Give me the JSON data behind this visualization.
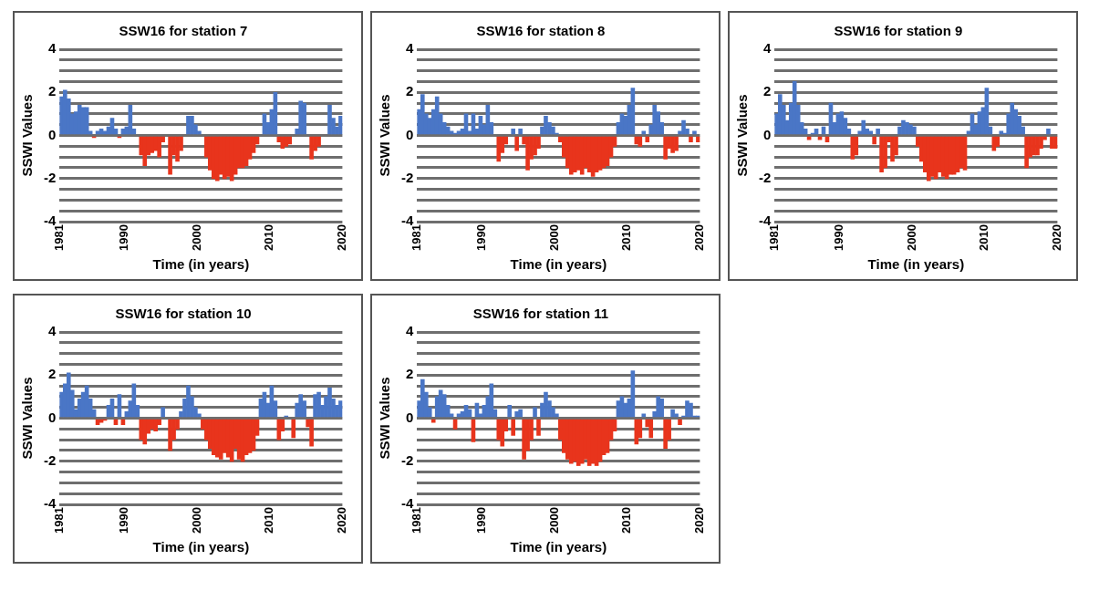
{
  "chart_data": [
    {
      "type": "bar",
      "title": "SSW16 for station 7",
      "xlabel": "Time (in years)",
      "ylabel": "SSWI Values",
      "grid": "y",
      "xlim": [
        1981,
        2020
      ],
      "xticks": [
        1981,
        1990,
        2000,
        2010,
        2020
      ],
      "ylim": [
        -4,
        4
      ],
      "yticks": [
        -4,
        {
          "value": -3.5,
          "label": null
        },
        {
          "value": -3,
          "label": null
        },
        {
          "value": -2.5,
          "label": null
        },
        -2,
        {
          "value": -1.5,
          "label": null
        },
        {
          "value": -1,
          "label": null
        },
        {
          "value": -0.5,
          "label": null
        },
        0,
        {
          "value": 0.5,
          "label": null
        },
        {
          "value": 1,
          "label": null
        },
        {
          "value": 1.5,
          "label": null
        },
        2,
        {
          "value": 2.5,
          "label": null
        },
        {
          "value": 3,
          "label": null
        },
        {
          "value": 3.5,
          "label": null
        },
        4
      ],
      "x": [
        1981.25,
        1981.75,
        1982.25,
        1982.75,
        1983.25,
        1983.75,
        1984.25,
        1984.75,
        1985.25,
        1985.75,
        1986.25,
        1986.75,
        1987.25,
        1987.75,
        1988.25,
        1988.75,
        1989.25,
        1989.75,
        1990.25,
        1990.75,
        1991.25,
        1991.75,
        1992.25,
        1992.75,
        1993.25,
        1993.75,
        1994.25,
        1994.75,
        1995.25,
        1995.75,
        1996.25,
        1996.75,
        1997.25,
        1997.75,
        1998.25,
        1998.75,
        1999.25,
        1999.75,
        2000.25,
        2000.75,
        2001.25,
        2001.75,
        2002.25,
        2002.75,
        2003.25,
        2003.75,
        2004.25,
        2004.75,
        2005.25,
        2005.75,
        2006.25,
        2006.75,
        2007.25,
        2007.75,
        2008.25,
        2008.75,
        2009.25,
        2009.75,
        2010.25,
        2010.75,
        2011.25,
        2011.75,
        2012.25,
        2012.75,
        2013.25,
        2013.75,
        2014.25,
        2014.75,
        2015.25,
        2015.75,
        2016.25,
        2016.75,
        2017.25,
        2017.75,
        2018.25,
        2018.75,
        2019.25,
        2019.75
      ],
      "series": [
        {
          "color": "#4a76c6",
          "values": [
            1.8,
            2.1,
            1.7,
            1.0,
            1.1,
            1.4,
            1.3,
            1.3,
            0.2,
            null,
            0.2,
            0.3,
            0.2,
            0.4,
            0.8,
            0.3,
            null,
            0.3,
            0.4,
            1.4,
            0.3,
            null,
            null,
            null,
            null,
            null,
            null,
            null,
            null,
            null,
            null,
            null,
            null,
            null,
            null,
            0.9,
            0.9,
            0.5,
            0.2,
            null,
            null,
            null,
            null,
            null,
            null,
            null,
            null,
            null,
            null,
            null,
            null,
            null,
            null,
            null,
            null,
            null,
            1.0,
            0.6,
            1.2,
            2.0,
            null,
            null,
            null,
            null,
            null,
            0.3,
            1.6,
            1.5,
            null,
            null,
            null,
            null,
            null,
            null,
            1.4,
            0.8,
            0.4,
            0.9
          ]
        },
        {
          "color": "#e8341c",
          "values": [
            null,
            null,
            null,
            null,
            null,
            null,
            null,
            null,
            null,
            -0.1,
            null,
            null,
            null,
            null,
            null,
            null,
            -0.1,
            null,
            null,
            null,
            null,
            null,
            -0.9,
            -1.4,
            -0.9,
            -0.8,
            -0.7,
            -1.0,
            -0.3,
            null,
            -1.8,
            -0.9,
            -1.2,
            -0.7,
            null,
            null,
            null,
            null,
            null,
            null,
            -1.0,
            -1.6,
            -2.0,
            -2.1,
            -1.8,
            -2.0,
            -1.9,
            -2.1,
            -1.8,
            -1.5,
            -1.5,
            -1.4,
            -1.1,
            -0.8,
            -0.4,
            null,
            null,
            null,
            null,
            null,
            -0.3,
            -0.6,
            -0.5,
            -0.4,
            null,
            null,
            null,
            null,
            null,
            -1.1,
            -0.7,
            -0.5,
            null,
            null,
            null,
            null,
            null,
            null
          ]
        }
      ]
    },
    {
      "type": "bar",
      "title": "SSW16 for station 8",
      "xlabel": "Time (in years)",
      "ylabel": "SSWI Values",
      "grid": "y",
      "xlim": [
        1981,
        2020
      ],
      "xticks": [
        1981,
        1990,
        2000,
        2010,
        2020
      ],
      "ylim": [
        -4,
        4
      ],
      "yticks": [
        -4,
        {
          "value": -3.5,
          "label": null
        },
        {
          "value": -3,
          "label": null
        },
        {
          "value": -2.5,
          "label": null
        },
        -2,
        {
          "value": -1.5,
          "label": null
        },
        {
          "value": -1,
          "label": null
        },
        {
          "value": -0.5,
          "label": null
        },
        0,
        {
          "value": 0.5,
          "label": null
        },
        {
          "value": 1,
          "label": null
        },
        {
          "value": 1.5,
          "label": null
        },
        2,
        {
          "value": 2.5,
          "label": null
        },
        {
          "value": 3,
          "label": null
        },
        {
          "value": 3.5,
          "label": null
        },
        4
      ],
      "x": [
        1981.25,
        1981.75,
        1982.25,
        1982.75,
        1983.25,
        1983.75,
        1984.25,
        1984.75,
        1985.25,
        1985.75,
        1986.25,
        1986.75,
        1987.25,
        1987.75,
        1988.25,
        1988.75,
        1989.25,
        1989.75,
        1990.25,
        1990.75,
        1991.25,
        1991.75,
        1992.25,
        1992.75,
        1993.25,
        1993.75,
        1994.25,
        1994.75,
        1995.25,
        1995.75,
        1996.25,
        1996.75,
        1997.25,
        1997.75,
        1998.25,
        1998.75,
        1999.25,
        1999.75,
        2000.25,
        2000.75,
        2001.25,
        2001.75,
        2002.25,
        2002.75,
        2003.25,
        2003.75,
        2004.25,
        2004.75,
        2005.25,
        2005.75,
        2006.25,
        2006.75,
        2007.25,
        2007.75,
        2008.25,
        2008.75,
        2009.25,
        2009.75,
        2010.25,
        2010.75,
        2011.25,
        2011.75,
        2012.25,
        2012.75,
        2013.25,
        2013.75,
        2014.25,
        2014.75,
        2015.25,
        2015.75,
        2016.25,
        2016.75,
        2017.25,
        2017.75,
        2018.25,
        2018.75,
        2019.25,
        2019.75
      ],
      "series": [
        {
          "color": "#4a76c6",
          "values": [
            1.2,
            1.9,
            1.0,
            0.8,
            1.2,
            1.8,
            1.0,
            0.6,
            0.4,
            0.2,
            0.1,
            0.2,
            0.3,
            1.0,
            0.2,
            1.0,
            0.3,
            0.9,
            0.5,
            1.4,
            0.6,
            null,
            null,
            null,
            null,
            null,
            0.3,
            null,
            0.3,
            null,
            null,
            null,
            null,
            null,
            0.4,
            0.9,
            0.6,
            0.4,
            0.1,
            null,
            null,
            null,
            null,
            null,
            null,
            null,
            null,
            null,
            null,
            null,
            null,
            null,
            null,
            null,
            null,
            0.6,
            1.0,
            0.9,
            1.4,
            2.2,
            null,
            null,
            0.2,
            null,
            0.5,
            1.4,
            1.1,
            0.6,
            null,
            null,
            null,
            null,
            0.2,
            0.7,
            0.3,
            null,
            0.2,
            null
          ]
        },
        {
          "color": "#e8341c",
          "values": [
            null,
            null,
            null,
            null,
            null,
            null,
            null,
            null,
            null,
            null,
            null,
            null,
            null,
            null,
            null,
            null,
            null,
            null,
            null,
            null,
            null,
            null,
            -1.2,
            -0.8,
            -0.4,
            null,
            null,
            -0.7,
            null,
            -0.4,
            -1.6,
            -1.1,
            -0.9,
            -0.6,
            null,
            null,
            null,
            null,
            null,
            -0.3,
            -1.0,
            -1.5,
            -1.8,
            -1.7,
            -1.6,
            -1.8,
            -1.5,
            -1.7,
            -1.9,
            -1.7,
            -1.6,
            -1.5,
            -1.4,
            -1.0,
            -0.5,
            null,
            null,
            null,
            null,
            null,
            -0.4,
            -0.5,
            null,
            -0.3,
            null,
            null,
            null,
            null,
            -1.1,
            -0.6,
            -0.8,
            -0.7,
            null,
            null,
            null,
            -0.3,
            null,
            -0.3
          ]
        }
      ]
    },
    {
      "type": "bar",
      "title": "SSW16 for station 9",
      "xlabel": "Time (in years)",
      "ylabel": "SSWI Values",
      "grid": "y",
      "xlim": [
        1981,
        2020
      ],
      "xticks": [
        1981,
        1990,
        2000,
        2010,
        2020
      ],
      "ylim": [
        -4,
        4
      ],
      "yticks": [
        -4,
        {
          "value": -3.5,
          "label": null
        },
        {
          "value": -3,
          "label": null
        },
        {
          "value": -2.5,
          "label": null
        },
        -2,
        {
          "value": -1.5,
          "label": null
        },
        {
          "value": -1,
          "label": null
        },
        {
          "value": -0.5,
          "label": null
        },
        0,
        {
          "value": 0.5,
          "label": null
        },
        {
          "value": 1,
          "label": null
        },
        {
          "value": 1.5,
          "label": null
        },
        2,
        {
          "value": 2.5,
          "label": null
        },
        {
          "value": 3,
          "label": null
        },
        {
          "value": 3.5,
          "label": null
        },
        4
      ],
      "x": [
        1981.25,
        1981.75,
        1982.25,
        1982.75,
        1983.25,
        1983.75,
        1984.25,
        1984.75,
        1985.25,
        1985.75,
        1986.25,
        1986.75,
        1987.25,
        1987.75,
        1988.25,
        1988.75,
        1989.25,
        1989.75,
        1990.25,
        1990.75,
        1991.25,
        1991.75,
        1992.25,
        1992.75,
        1993.25,
        1993.75,
        1994.25,
        1994.75,
        1995.25,
        1995.75,
        1996.25,
        1996.75,
        1997.25,
        1997.75,
        1998.25,
        1998.75,
        1999.25,
        1999.75,
        2000.25,
        2000.75,
        2001.25,
        2001.75,
        2002.25,
        2002.75,
        2003.25,
        2003.75,
        2004.25,
        2004.75,
        2005.25,
        2005.75,
        2006.25,
        2006.75,
        2007.25,
        2007.75,
        2008.25,
        2008.75,
        2009.25,
        2009.75,
        2010.25,
        2010.75,
        2011.25,
        2011.75,
        2012.25,
        2012.75,
        2013.25,
        2013.75,
        2014.25,
        2014.75,
        2015.25,
        2015.75,
        2016.25,
        2016.75,
        2017.25,
        2017.75,
        2018.25,
        2018.75,
        2019.25,
        2019.75
      ],
      "series": [
        {
          "color": "#4a76c6",
          "values": [
            1.0,
            1.9,
            1.4,
            0.7,
            1.5,
            2.5,
            1.4,
            0.6,
            0.3,
            null,
            0.1,
            0.3,
            null,
            0.4,
            null,
            1.5,
            0.6,
            1.0,
            1.1,
            0.8,
            0.3,
            null,
            null,
            0.2,
            0.7,
            0.3,
            0.2,
            null,
            0.3,
            null,
            null,
            null,
            null,
            null,
            0.4,
            0.7,
            0.6,
            0.5,
            0.4,
            null,
            null,
            null,
            null,
            null,
            null,
            null,
            null,
            null,
            null,
            null,
            null,
            null,
            null,
            0.2,
            1.0,
            0.5,
            1.1,
            1.3,
            2.2,
            0.4,
            null,
            null,
            0.2,
            0.1,
            1.0,
            1.5,
            1.2,
            0.9,
            0.4,
            null,
            null,
            null,
            null,
            null,
            null,
            0.3,
            null,
            null
          ]
        },
        {
          "color": "#e8341c",
          "values": [
            null,
            null,
            null,
            null,
            null,
            null,
            null,
            null,
            null,
            -0.2,
            null,
            null,
            -0.2,
            null,
            -0.3,
            null,
            null,
            null,
            null,
            null,
            null,
            -1.1,
            -0.9,
            null,
            null,
            null,
            null,
            -0.4,
            null,
            -1.7,
            -1.5,
            -0.3,
            -1.2,
            -0.9,
            null,
            null,
            null,
            null,
            null,
            -0.5,
            -1.2,
            -1.7,
            -2.1,
            -1.9,
            -2.0,
            -1.7,
            -1.9,
            -2.0,
            -1.8,
            -1.8,
            -1.7,
            -1.5,
            -1.6,
            null,
            null,
            null,
            null,
            null,
            null,
            null,
            -0.7,
            -0.5,
            null,
            null,
            null,
            null,
            null,
            null,
            null,
            -1.5,
            -1.0,
            -0.9,
            -0.9,
            -0.6,
            -0.2,
            null,
            -0.6,
            -0.6
          ]
        }
      ]
    },
    {
      "type": "bar",
      "title": "SSW16 for station 10",
      "xlabel": "Time (in years)",
      "ylabel": "SSWI Values",
      "grid": "y",
      "xlim": [
        1981,
        2020
      ],
      "xticks": [
        1981,
        1990,
        2000,
        2010,
        2020
      ],
      "ylim": [
        -4,
        4
      ],
      "yticks": [
        -4,
        {
          "value": -3.5,
          "label": null
        },
        {
          "value": -3,
          "label": null
        },
        {
          "value": -2.5,
          "label": null
        },
        -2,
        {
          "value": -1.5,
          "label": null
        },
        {
          "value": -1,
          "label": null
        },
        {
          "value": -0.5,
          "label": null
        },
        0,
        {
          "value": 0.5,
          "label": null
        },
        {
          "value": 1,
          "label": null
        },
        {
          "value": 1.5,
          "label": null
        },
        2,
        {
          "value": 2.5,
          "label": null
        },
        {
          "value": 3,
          "label": null
        },
        {
          "value": 3.5,
          "label": null
        },
        4
      ],
      "x": [
        1981.25,
        1981.75,
        1982.25,
        1982.75,
        1983.25,
        1983.75,
        1984.25,
        1984.75,
        1985.25,
        1985.75,
        1986.25,
        1986.75,
        1987.25,
        1987.75,
        1988.25,
        1988.75,
        1989.25,
        1989.75,
        1990.25,
        1990.75,
        1991.25,
        1991.75,
        1992.25,
        1992.75,
        1993.25,
        1993.75,
        1994.25,
        1994.75,
        1995.25,
        1995.75,
        1996.25,
        1996.75,
        1997.25,
        1997.75,
        1998.25,
        1998.75,
        1999.25,
        1999.75,
        2000.25,
        2000.75,
        2001.25,
        2001.75,
        2002.25,
        2002.75,
        2003.25,
        2003.75,
        2004.25,
        2004.75,
        2005.25,
        2005.75,
        2006.25,
        2006.75,
        2007.25,
        2007.75,
        2008.25,
        2008.75,
        2009.25,
        2009.75,
        2010.25,
        2010.75,
        2011.25,
        2011.75,
        2012.25,
        2012.75,
        2013.25,
        2013.75,
        2014.25,
        2014.75,
        2015.25,
        2015.75,
        2016.25,
        2016.75,
        2017.25,
        2017.75,
        2018.25,
        2018.75,
        2019.25,
        2019.75
      ],
      "series": [
        {
          "color": "#4a76c6",
          "values": [
            1.2,
            1.6,
            2.1,
            1.3,
            0.4,
            0.9,
            1.2,
            1.5,
            0.9,
            0.4,
            null,
            null,
            null,
            0.6,
            0.9,
            null,
            1.1,
            null,
            0.3,
            0.8,
            1.6,
            0.6,
            null,
            null,
            null,
            null,
            null,
            null,
            0.5,
            null,
            null,
            null,
            null,
            0.3,
            0.9,
            1.5,
            1.0,
            0.5,
            0.2,
            null,
            null,
            null,
            null,
            null,
            null,
            null,
            null,
            null,
            null,
            null,
            null,
            null,
            null,
            null,
            null,
            0.9,
            1.2,
            0.7,
            1.5,
            0.8,
            null,
            null,
            0.1,
            null,
            null,
            0.7,
            1.1,
            0.8,
            null,
            null,
            1.1,
            1.2,
            0.6,
            1.0,
            1.4,
            0.9,
            0.6,
            0.8
          ]
        },
        {
          "color": "#e8341c",
          "values": [
            null,
            null,
            null,
            null,
            null,
            null,
            null,
            null,
            null,
            null,
            -0.3,
            -0.2,
            -0.1,
            null,
            null,
            -0.3,
            null,
            -0.3,
            null,
            null,
            null,
            null,
            -1.0,
            -1.2,
            -0.7,
            -0.5,
            -0.6,
            -0.3,
            null,
            null,
            -1.5,
            -1.0,
            -0.5,
            null,
            null,
            null,
            null,
            null,
            null,
            -0.5,
            -1.0,
            -1.4,
            -1.7,
            -1.8,
            -1.9,
            -1.6,
            -1.8,
            -2.0,
            -1.4,
            -1.9,
            -2.0,
            -1.7,
            -1.6,
            -1.5,
            -0.8,
            null,
            null,
            null,
            null,
            null,
            -1.0,
            -0.6,
            null,
            null,
            -0.9,
            null,
            null,
            null,
            -0.4,
            -1.3,
            null,
            null,
            null,
            null,
            null,
            null,
            null,
            null
          ]
        }
      ]
    },
    {
      "type": "bar",
      "title": "SSW16 for station 11",
      "xlabel": "Time (in years)",
      "ylabel": "SSWI Values",
      "grid": "y",
      "xlim": [
        1981,
        2020
      ],
      "xticks": [
        1981,
        1990,
        2000,
        2010,
        2020
      ],
      "ylim": [
        -4,
        4
      ],
      "yticks": [
        -4,
        {
          "value": -3.5,
          "label": null
        },
        {
          "value": -3,
          "label": null
        },
        {
          "value": -2.5,
          "label": null
        },
        -2,
        {
          "value": -1.5,
          "label": null
        },
        {
          "value": -1,
          "label": null
        },
        {
          "value": -0.5,
          "label": null
        },
        0,
        {
          "value": 0.5,
          "label": null
        },
        {
          "value": 1,
          "label": null
        },
        {
          "value": 1.5,
          "label": null
        },
        2,
        {
          "value": 2.5,
          "label": null
        },
        {
          "value": 3,
          "label": null
        },
        {
          "value": 3.5,
          "label": null
        },
        4
      ],
      "x": [
        1981.25,
        1981.75,
        1982.25,
        1982.75,
        1983.25,
        1983.75,
        1984.25,
        1984.75,
        1985.25,
        1985.75,
        1986.25,
        1986.75,
        1987.25,
        1987.75,
        1988.25,
        1988.75,
        1989.25,
        1989.75,
        1990.25,
        1990.75,
        1991.25,
        1991.75,
        1992.25,
        1992.75,
        1993.25,
        1993.75,
        1994.25,
        1994.75,
        1995.25,
        1995.75,
        1996.25,
        1996.75,
        1997.25,
        1997.75,
        1998.25,
        1998.75,
        1999.25,
        1999.75,
        2000.25,
        2000.75,
        2001.25,
        2001.75,
        2002.25,
        2002.75,
        2003.25,
        2003.75,
        2004.25,
        2004.75,
        2005.25,
        2005.75,
        2006.25,
        2006.75,
        2007.25,
        2007.75,
        2008.25,
        2008.75,
        2009.25,
        2009.75,
        2010.25,
        2010.75,
        2011.25,
        2011.75,
        2012.25,
        2012.75,
        2013.25,
        2013.75,
        2014.25,
        2014.75,
        2015.25,
        2015.75,
        2016.25,
        2016.75,
        2017.25,
        2017.75,
        2018.25,
        2018.75,
        2019.25,
        2019.75
      ],
      "series": [
        {
          "color": "#4a76c6",
          "values": [
            0.8,
            1.8,
            1.2,
            0.5,
            null,
            1.0,
            1.3,
            1.1,
            0.6,
            0.2,
            null,
            0.2,
            0.3,
            0.6,
            0.4,
            null,
            0.7,
            0.2,
            0.6,
            1.0,
            1.6,
            0.4,
            null,
            null,
            null,
            0.6,
            null,
            0.3,
            0.4,
            null,
            null,
            null,
            0.5,
            null,
            0.7,
            1.2,
            0.8,
            0.5,
            0.2,
            null,
            null,
            null,
            null,
            null,
            null,
            null,
            null,
            null,
            null,
            null,
            null,
            null,
            null,
            null,
            null,
            0.8,
            1.0,
            0.7,
            0.9,
            2.2,
            null,
            null,
            0.2,
            null,
            null,
            0.3,
            1.0,
            0.9,
            null,
            null,
            0.4,
            0.2,
            null,
            0.1,
            0.8,
            0.7,
            0.1,
            0.1
          ]
        },
        {
          "color": "#e8341c",
          "values": [
            null,
            null,
            null,
            null,
            -0.2,
            null,
            null,
            null,
            null,
            null,
            -0.5,
            null,
            null,
            null,
            null,
            -1.1,
            null,
            null,
            null,
            null,
            null,
            null,
            -1.0,
            -1.3,
            -0.6,
            null,
            -0.8,
            null,
            null,
            -1.9,
            -1.5,
            -1.0,
            null,
            -0.8,
            null,
            null,
            null,
            null,
            null,
            -1.0,
            -1.6,
            -1.9,
            -2.1,
            -2.0,
            -2.2,
            -2.1,
            -1.9,
            -2.2,
            -2.1,
            -2.2,
            -2.0,
            -1.7,
            -1.6,
            -1.0,
            -0.6,
            null,
            null,
            null,
            null,
            null,
            -1.2,
            -0.9,
            null,
            -0.4,
            -0.9,
            null,
            null,
            null,
            -1.4,
            -1.0,
            null,
            null,
            -0.3,
            null,
            null,
            null,
            null,
            null
          ]
        }
      ]
    }
  ]
}
